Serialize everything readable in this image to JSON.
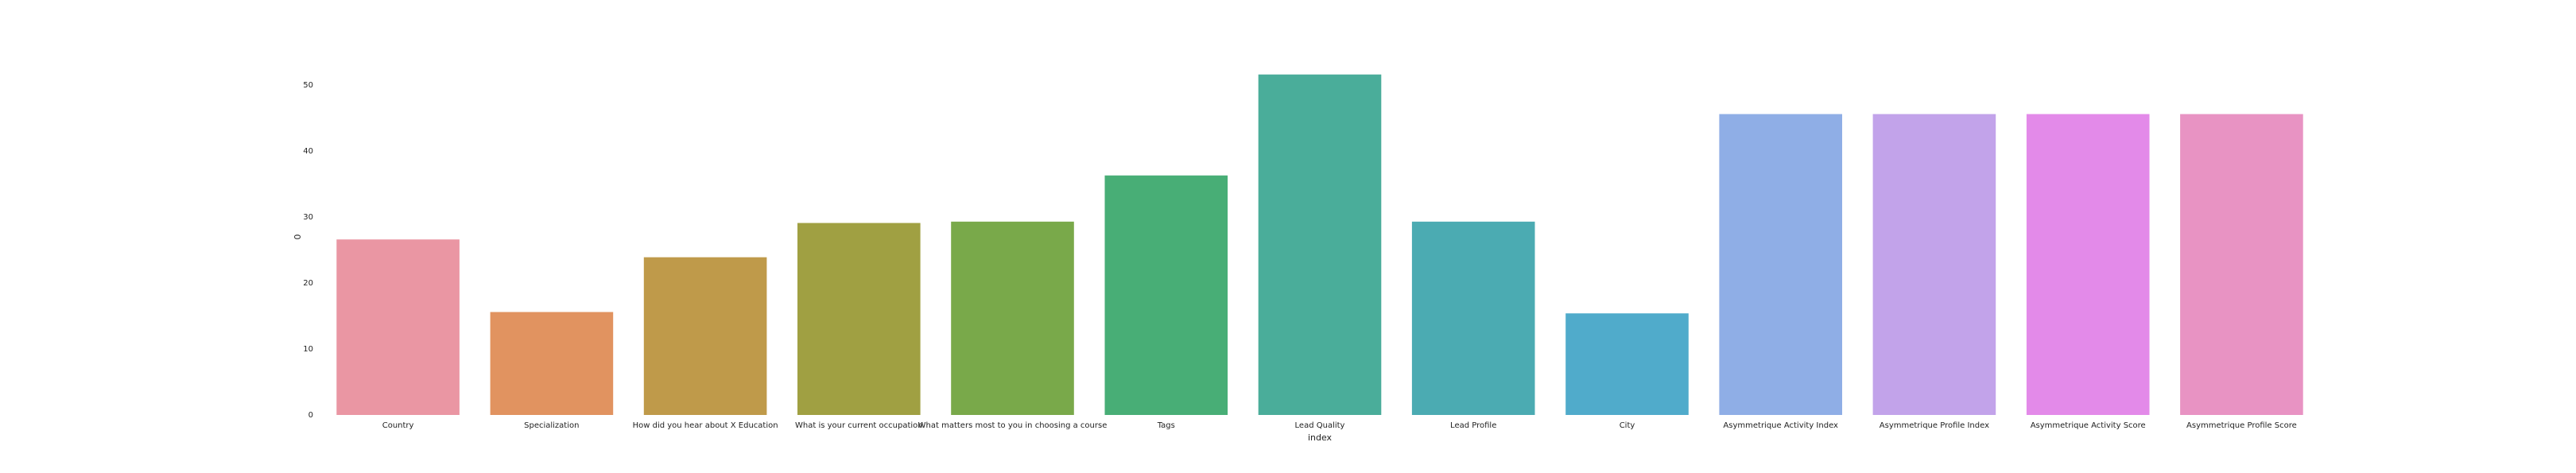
{
  "chart_data": {
    "type": "bar",
    "categories": [
      "Country",
      "Specialization",
      "How did you hear about X Education",
      "What is your current occupation",
      "What matters most to you in choosing a course",
      "Tags",
      "Lead Quality",
      "Lead Profile",
      "City",
      "Asymmetrique Activity Index",
      "Asymmetrique Profile Index",
      "Asymmetrique Activity Score",
      "Asymmetrique Profile Score"
    ],
    "values": [
      26.6,
      15.6,
      23.9,
      29.1,
      29.3,
      36.3,
      51.6,
      29.3,
      15.4,
      45.6,
      45.6,
      45.6,
      45.6
    ],
    "colors": [
      "#ea96a3",
      "#e19360",
      "#bf9a4a",
      "#a0a042",
      "#79a94a",
      "#48ae76",
      "#4aad9a",
      "#4babb2",
      "#50abcb",
      "#8faee6",
      "#c2a3ea",
      "#e38ae9",
      "#e893c3"
    ],
    "xlabel": "index",
    "ylabel": "0",
    "yticks": [
      0,
      10,
      20,
      30,
      40,
      50
    ],
    "ylim": [
      0,
      54
    ],
    "grid": false,
    "legend": "none"
  }
}
